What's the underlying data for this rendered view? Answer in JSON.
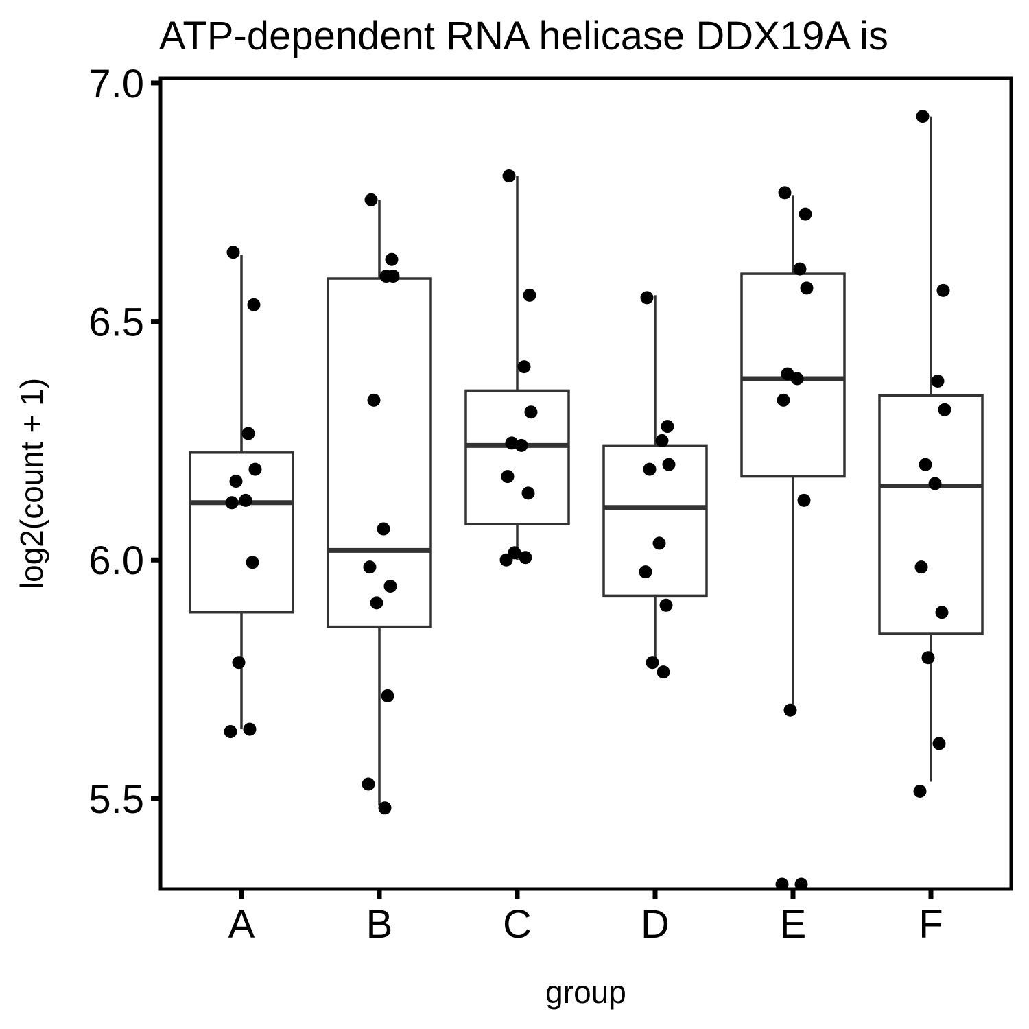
{
  "chart_data": {
    "type": "box",
    "title": "ATP-dependent RNA helicase DDX19A is",
    "xlabel": "group",
    "ylabel": "log2(count + 1)",
    "ylim": [
      5.31,
      7.01
    ],
    "yticks": [
      5.5,
      6.0,
      6.5,
      7.0
    ],
    "ytick_labels": [
      "5.5",
      "6.0",
      "6.5",
      "7.0"
    ],
    "categories": [
      "A",
      "B",
      "C",
      "D",
      "E",
      "F"
    ],
    "boxes": [
      {
        "group": "A",
        "whisker_low": 5.645,
        "q1": 5.89,
        "median": 6.12,
        "q3": 6.225,
        "whisker_high": 6.64
      },
      {
        "group": "B",
        "whisker_low": 5.485,
        "q1": 5.86,
        "median": 6.02,
        "q3": 6.59,
        "whisker_high": 6.755
      },
      {
        "group": "C",
        "whisker_low": 6.0,
        "q1": 6.075,
        "median": 6.24,
        "q3": 6.355,
        "whisker_high": 6.805
      },
      {
        "group": "D",
        "whisker_low": 5.775,
        "q1": 5.925,
        "median": 6.11,
        "q3": 6.24,
        "whisker_high": 6.555
      },
      {
        "group": "E",
        "whisker_low": 5.685,
        "q1": 6.175,
        "median": 6.38,
        "q3": 6.6,
        "whisker_high": 6.765
      },
      {
        "group": "F",
        "whisker_low": 5.535,
        "q1": 5.845,
        "median": 6.155,
        "q3": 6.345,
        "whisker_high": 6.93
      }
    ],
    "points": [
      {
        "group": "A",
        "values": [
          6.645,
          6.535,
          6.265,
          6.19,
          6.165,
          6.125,
          6.12,
          5.995,
          5.785,
          5.645,
          5.64
        ]
      },
      {
        "group": "B",
        "values": [
          6.755,
          6.63,
          6.595,
          6.595,
          6.335,
          6.065,
          5.985,
          5.945,
          5.91,
          5.715,
          5.53,
          5.48
        ]
      },
      {
        "group": "C",
        "values": [
          6.805,
          6.555,
          6.405,
          6.31,
          6.245,
          6.24,
          6.175,
          6.14,
          6.015,
          6.005,
          6.0
        ]
      },
      {
        "group": "D",
        "values": [
          6.55,
          6.28,
          6.25,
          6.2,
          6.19,
          6.035,
          5.975,
          5.905,
          5.785,
          5.765
        ]
      },
      {
        "group": "E",
        "values": [
          6.77,
          6.725,
          6.61,
          6.57,
          6.39,
          6.38,
          6.335,
          6.125,
          5.685,
          5.32,
          5.32
        ]
      },
      {
        "group": "F",
        "values": [
          6.93,
          6.565,
          6.375,
          6.315,
          6.2,
          6.16,
          5.985,
          5.89,
          5.795,
          5.615,
          5.515
        ]
      }
    ]
  }
}
